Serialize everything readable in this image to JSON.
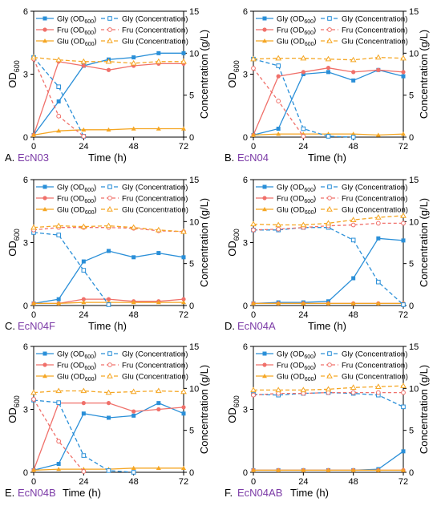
{
  "colors": {
    "gly": "#2a8fd8",
    "fru": "#f0706a",
    "glu": "#f5a623"
  },
  "legend": {
    "gly_od": "Gly (OD",
    "fru_od": "Fru (OD",
    "glu_od": "Glu (OD",
    "od_sub": "600",
    "close": ")",
    "gly_conc": "Gly (Concentration)",
    "fru_conc": "Fru (Concentration)",
    "glu_conc": "Glu (Concentration)"
  },
  "axes": {
    "ylabel_left_main": "OD",
    "ylabel_left_sub": "600",
    "ylabel_right": "Concentration (g/L)",
    "xlabel": "Time (h)",
    "x_ticks": [
      "0",
      "24",
      "48",
      "72"
    ],
    "y_left_ticks": [
      "0",
      "3",
      "6"
    ],
    "y_right_ticks": [
      "0",
      "5",
      "10",
      "15"
    ]
  },
  "chart_data": [
    {
      "type": "line",
      "letter": "A.",
      "strain": "EcN03",
      "xlim": [
        0,
        72
      ],
      "ylim_left": [
        0,
        6
      ],
      "ylim_right": [
        0,
        15
      ],
      "series": [
        {
          "key": "gly_od",
          "axis": "left",
          "x": [
            0,
            12,
            24,
            36,
            48,
            60,
            72
          ],
          "y": [
            0.1,
            1.7,
            3.4,
            3.7,
            3.8,
            4.0,
            4.0
          ]
        },
        {
          "key": "fru_od",
          "axis": "left",
          "x": [
            0,
            12,
            24,
            36,
            48,
            60,
            72
          ],
          "y": [
            0.1,
            3.6,
            3.4,
            3.2,
            3.4,
            3.5,
            3.5
          ]
        },
        {
          "key": "glu_od",
          "axis": "left",
          "x": [
            0,
            12,
            24,
            36,
            48,
            60,
            72
          ],
          "y": [
            0.1,
            0.3,
            0.35,
            0.35,
            0.4,
            0.4,
            0.4
          ]
        },
        {
          "key": "gly_conc",
          "axis": "right",
          "x": [
            0,
            12,
            24
          ],
          "y": [
            9.5,
            6.0,
            0.1
          ]
        },
        {
          "key": "fru_conc",
          "axis": "right",
          "x": [
            0,
            12,
            24
          ],
          "y": [
            9.3,
            2.5,
            0.1
          ]
        },
        {
          "key": "glu_conc",
          "axis": "right",
          "x": [
            0,
            12,
            24,
            36,
            48,
            60,
            72
          ],
          "y": [
            9.5,
            9.2,
            9.0,
            9.0,
            8.8,
            9.0,
            9.0
          ]
        }
      ]
    },
    {
      "type": "line",
      "letter": "B.",
      "strain": "EcN04",
      "xlim": [
        0,
        72
      ],
      "ylim_left": [
        0,
        6
      ],
      "ylim_right": [
        0,
        15
      ],
      "series": [
        {
          "key": "gly_od",
          "axis": "left",
          "x": [
            0,
            12,
            24,
            36,
            48,
            60,
            72
          ],
          "y": [
            0.1,
            0.4,
            3.0,
            3.1,
            2.7,
            3.2,
            2.9
          ]
        },
        {
          "key": "fru_od",
          "axis": "left",
          "x": [
            0,
            12,
            24,
            36,
            48,
            60,
            72
          ],
          "y": [
            0.1,
            2.9,
            3.1,
            3.3,
            3.1,
            3.2,
            3.1
          ]
        },
        {
          "key": "glu_od",
          "axis": "left",
          "x": [
            0,
            12,
            24,
            36,
            48,
            60,
            72
          ],
          "y": [
            0.1,
            0.15,
            0.15,
            0.15,
            0.15,
            0.1,
            0.15
          ]
        },
        {
          "key": "gly_conc",
          "axis": "right",
          "x": [
            0,
            12,
            24,
            36,
            48
          ],
          "y": [
            9.3,
            8.5,
            1.0,
            0.1,
            0.0
          ]
        },
        {
          "key": "fru_conc",
          "axis": "right",
          "x": [
            0,
            12,
            24
          ],
          "y": [
            8.2,
            4.3,
            0.1
          ]
        },
        {
          "key": "glu_conc",
          "axis": "right",
          "x": [
            0,
            12,
            24,
            36,
            48,
            60,
            72
          ],
          "y": [
            9.3,
            9.4,
            9.4,
            9.3,
            9.2,
            9.5,
            9.4
          ]
        }
      ]
    },
    {
      "type": "line",
      "letter": "C.",
      "strain": "EcN04F",
      "xlim": [
        0,
        72
      ],
      "ylim_left": [
        0,
        6
      ],
      "ylim_right": [
        0,
        15
      ],
      "series": [
        {
          "key": "gly_od",
          "axis": "left",
          "x": [
            0,
            12,
            24,
            36,
            48,
            60,
            72
          ],
          "y": [
            0.1,
            0.3,
            2.1,
            2.6,
            2.3,
            2.5,
            2.3
          ]
        },
        {
          "key": "fru_od",
          "axis": "left",
          "x": [
            0,
            12,
            24,
            36,
            48,
            60,
            72
          ],
          "y": [
            0.1,
            0.1,
            0.3,
            0.3,
            0.2,
            0.2,
            0.3
          ]
        },
        {
          "key": "glu_od",
          "axis": "left",
          "x": [
            0,
            12,
            24,
            36,
            48,
            60,
            72
          ],
          "y": [
            0.1,
            0.1,
            0.15,
            0.15,
            0.15,
            0.15,
            0.15
          ]
        },
        {
          "key": "gly_conc",
          "axis": "right",
          "x": [
            0,
            12,
            24,
            36
          ],
          "y": [
            8.7,
            8.4,
            4.2,
            0.1
          ]
        },
        {
          "key": "fru_conc",
          "axis": "right",
          "x": [
            0,
            12,
            24,
            36,
            48,
            60,
            72
          ],
          "y": [
            9.0,
            9.3,
            9.3,
            9.3,
            9.2,
            8.9,
            8.8
          ]
        },
        {
          "key": "glu_conc",
          "axis": "right",
          "x": [
            0,
            12,
            24,
            36,
            48,
            60,
            72
          ],
          "y": [
            9.3,
            9.5,
            9.4,
            9.5,
            9.3,
            9.0,
            8.8
          ]
        }
      ]
    },
    {
      "type": "line",
      "letter": "D.",
      "strain": "EcN04A",
      "xlim": [
        0,
        72
      ],
      "ylim_left": [
        0,
        6
      ],
      "ylim_right": [
        0,
        15
      ],
      "series": [
        {
          "key": "gly_od",
          "axis": "left",
          "x": [
            0,
            12,
            24,
            36,
            48,
            60,
            72
          ],
          "y": [
            0.1,
            0.15,
            0.15,
            0.2,
            1.3,
            3.2,
            3.1
          ]
        },
        {
          "key": "fru_od",
          "axis": "left",
          "x": [
            0,
            12,
            24,
            36,
            48,
            60,
            72
          ],
          "y": [
            0.1,
            0.1,
            0.1,
            0.1,
            0.1,
            0.1,
            0.1
          ]
        },
        {
          "key": "glu_od",
          "axis": "left",
          "x": [
            0,
            12,
            24,
            36,
            48,
            60,
            72
          ],
          "y": [
            0.1,
            0.1,
            0.1,
            0.1,
            0.1,
            0.1,
            0.1
          ]
        },
        {
          "key": "gly_conc",
          "axis": "right",
          "x": [
            0,
            12,
            24,
            36,
            48,
            60,
            72
          ],
          "y": [
            9.0,
            9.0,
            9.3,
            9.3,
            7.8,
            2.8,
            0.1
          ]
        },
        {
          "key": "fru_conc",
          "axis": "right",
          "x": [
            0,
            12,
            24,
            36,
            48,
            60,
            72
          ],
          "y": [
            9.0,
            9.1,
            9.3,
            9.5,
            9.6,
            9.8,
            9.8
          ]
        },
        {
          "key": "glu_conc",
          "axis": "right",
          "x": [
            0,
            12,
            24,
            36,
            48,
            60,
            72
          ],
          "y": [
            9.7,
            9.6,
            9.6,
            9.8,
            10.2,
            10.5,
            10.7
          ]
        }
      ]
    },
    {
      "type": "line",
      "letter": "E.",
      "strain": "EcN04B",
      "xlim": [
        0,
        72
      ],
      "ylim_left": [
        0,
        6
      ],
      "ylim_right": [
        0,
        15
      ],
      "series": [
        {
          "key": "gly_od",
          "axis": "left",
          "x": [
            0,
            12,
            24,
            36,
            48,
            60,
            72
          ],
          "y": [
            0.1,
            0.4,
            2.8,
            2.6,
            2.7,
            3.3,
            2.8
          ]
        },
        {
          "key": "fru_od",
          "axis": "left",
          "x": [
            0,
            12,
            24,
            36,
            48,
            60,
            72
          ],
          "y": [
            0.1,
            3.3,
            3.3,
            3.3,
            2.9,
            3.0,
            3.1
          ]
        },
        {
          "key": "glu_od",
          "axis": "left",
          "x": [
            0,
            12,
            24,
            36,
            48,
            60,
            72
          ],
          "y": [
            0.1,
            0.15,
            0.15,
            0.15,
            0.2,
            0.2,
            0.2
          ]
        },
        {
          "key": "gly_conc",
          "axis": "right",
          "x": [
            0,
            12,
            24,
            36,
            48
          ],
          "y": [
            8.6,
            8.3,
            2.0,
            0.2,
            0.0
          ]
        },
        {
          "key": "fru_conc",
          "axis": "right",
          "x": [
            0,
            12,
            24
          ],
          "y": [
            8.7,
            3.7,
            0.1
          ]
        },
        {
          "key": "glu_conc",
          "axis": "right",
          "x": [
            0,
            12,
            24,
            36,
            48,
            60,
            72
          ],
          "y": [
            9.5,
            9.7,
            9.7,
            9.5,
            9.6,
            9.7,
            9.6
          ]
        }
      ]
    },
    {
      "type": "line",
      "letter": "F.",
      "strain": "EcN04AB",
      "xlim": [
        0,
        72
      ],
      "ylim_left": [
        0,
        6
      ],
      "ylim_right": [
        0,
        15
      ],
      "series": [
        {
          "key": "gly_od",
          "axis": "left",
          "x": [
            0,
            12,
            24,
            36,
            48,
            60,
            72
          ],
          "y": [
            0.1,
            0.1,
            0.1,
            0.1,
            0.1,
            0.15,
            1.0
          ]
        },
        {
          "key": "fru_od",
          "axis": "left",
          "x": [
            0,
            12,
            24,
            36,
            48,
            60,
            72
          ],
          "y": [
            0.1,
            0.1,
            0.1,
            0.1,
            0.1,
            0.1,
            0.1
          ]
        },
        {
          "key": "glu_od",
          "axis": "left",
          "x": [
            0,
            12,
            24,
            36,
            48,
            60,
            72
          ],
          "y": [
            0.1,
            0.1,
            0.1,
            0.1,
            0.1,
            0.1,
            0.1
          ]
        },
        {
          "key": "gly_conc",
          "axis": "right",
          "x": [
            0,
            12,
            24,
            36,
            48,
            60,
            72
          ],
          "y": [
            9.3,
            9.2,
            9.4,
            9.5,
            9.4,
            9.2,
            7.8
          ]
        },
        {
          "key": "fru_conc",
          "axis": "right",
          "x": [
            0,
            12,
            24,
            36,
            48,
            60,
            72
          ],
          "y": [
            9.2,
            9.4,
            9.4,
            9.5,
            9.5,
            9.5,
            9.5
          ]
        },
        {
          "key": "glu_conc",
          "axis": "right",
          "x": [
            0,
            12,
            24,
            36,
            48,
            60,
            72
          ],
          "y": [
            9.8,
            9.8,
            9.8,
            9.9,
            10.1,
            10.2,
            10.3
          ]
        }
      ]
    }
  ]
}
